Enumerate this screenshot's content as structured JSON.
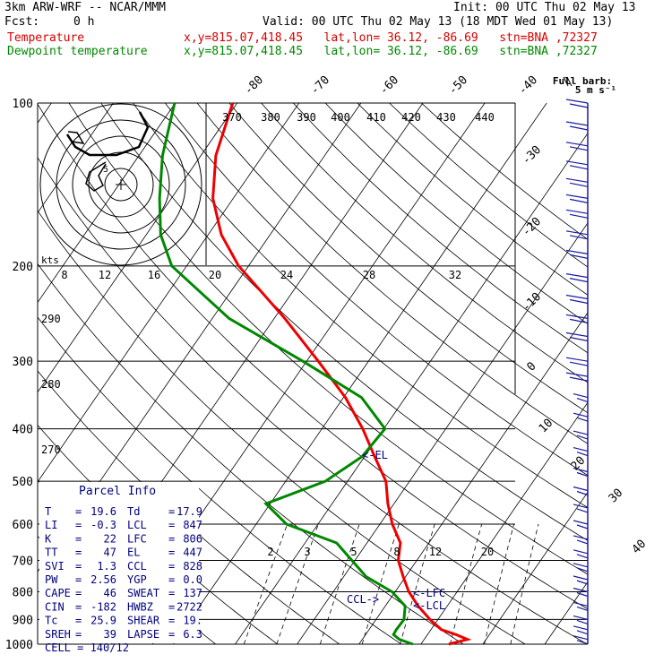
{
  "header": {
    "line1_left": "3km ARW-WRF -- NCAR/MMM",
    "line1_right": "Init: 00 UTC Thu 02 May 13",
    "fcst_label": "Fcst:",
    "fcst_value": "0 h",
    "valid": "Valid: 00 UTC Thu 02 May 13 (18 MDT Wed 01 May 13)",
    "temp_label": "Temperature",
    "dew_label": "Dewpoint temperature",
    "location": "x,y=815.07,418.45   lat,lon= 36.12, -86.69   stn=BNA ,72327"
  },
  "barb_legend": {
    "line1": "Full barb:",
    "line2": "5 m s⁻¹"
  },
  "hodograph": {
    "units_label": "kts",
    "ring_labels": [
      "5"
    ]
  },
  "parcel_info": {
    "title": "Parcel Info",
    "rows": [
      {
        "k1": "T",
        "v1": "19.6",
        "k2": "Td",
        "v2": "17.9"
      },
      {
        "k1": "LI",
        "v1": "-0.3",
        "k2": "LCL",
        "v2": "847"
      },
      {
        "k1": "K",
        "v1": "22",
        "k2": "LFC",
        "v2": "806"
      },
      {
        "k1": "TT",
        "v1": "47",
        "k2": "EL",
        "v2": "447"
      },
      {
        "k1": "SVI",
        "v1": "1.3",
        "k2": "CCL",
        "v2": "828"
      },
      {
        "k1": "PW",
        "v1": "2.56",
        "k2": "YGP",
        "v2": "0.0"
      },
      {
        "k1": "CAPE",
        "v1": "46",
        "k2": "SWEAT",
        "v2": "137"
      },
      {
        "k1": "CIN",
        "v1": "-182",
        "k2": "HWBZ",
        "v2": "2722"
      },
      {
        "k1": "Tc",
        "v1": "25.9",
        "k2": "SHEAR",
        "v2": "19."
      },
      {
        "k1": "SREH",
        "v1": "39",
        "k2": "LAPSE",
        "v2": "6.3"
      }
    ],
    "cell": "CELL = 140/12"
  },
  "chart_data": {
    "type": "line",
    "pressure_axis": {
      "label": "",
      "ticks": [
        100,
        200,
        300,
        400,
        500,
        600,
        700,
        800,
        900,
        1000
      ],
      "range": [
        100,
        1000
      ],
      "scale": "log"
    },
    "isotherm_labels": [
      -80,
      -70,
      -60,
      -50,
      -40,
      -30,
      -20,
      -10,
      0,
      10,
      20,
      30,
      40
    ],
    "theta_labels": [
      370,
      380,
      390,
      400,
      410,
      420,
      430,
      440
    ],
    "theta_side_labels": [
      270,
      280,
      290
    ],
    "mixing_ratio_labels_upper": [
      8,
      12,
      16,
      20,
      24,
      28,
      32
    ],
    "mixing_ratio_labels_lower": [
      2,
      3,
      5,
      8,
      12,
      20
    ],
    "levels": [
      {
        "label": "<-EL",
        "p": 447
      },
      {
        "label": "<-LFC",
        "p": 806
      },
      {
        "label": "<-LCL",
        "p": 847
      },
      {
        "label": "CCL->",
        "p": 828
      }
    ],
    "series": [
      {
        "name": "Temperature",
        "color": "#ee0000",
        "points": [
          [
            1000,
            24.5
          ],
          [
            980,
            27.0
          ],
          [
            960,
            24.6
          ],
          [
            940,
            21.7
          ],
          [
            900,
            18.7
          ],
          [
            850,
            15.3
          ],
          [
            800,
            12.2
          ],
          [
            750,
            9.6
          ],
          [
            700,
            7.0
          ],
          [
            650,
            5.4
          ],
          [
            600,
            2.0
          ],
          [
            550,
            -1.0
          ],
          [
            500,
            -3.8
          ],
          [
            450,
            -8.4
          ],
          [
            400,
            -13.4
          ],
          [
            350,
            -19.7
          ],
          [
            300,
            -28.1
          ],
          [
            250,
            -38.3
          ],
          [
            200,
            -51.6
          ],
          [
            175,
            -57.9
          ],
          [
            150,
            -63.3
          ],
          [
            125,
            -67.6
          ],
          [
            100,
            -70.7
          ]
        ]
      },
      {
        "name": "Dewpoint temperature",
        "color": "#008800",
        "points": [
          [
            1000,
            18.7
          ],
          [
            980,
            16.0
          ],
          [
            960,
            14.5
          ],
          [
            940,
            14.4
          ],
          [
            900,
            14.5
          ],
          [
            850,
            13.2
          ],
          [
            800,
            9.5
          ],
          [
            750,
            3.6
          ],
          [
            700,
            -0.5
          ],
          [
            650,
            -4.9
          ],
          [
            600,
            -15.1
          ],
          [
            550,
            -20.7
          ],
          [
            500,
            -13.6
          ],
          [
            450,
            -10.4
          ],
          [
            400,
            -9.8
          ],
          [
            350,
            -17.1
          ],
          [
            300,
            -30.6
          ],
          [
            250,
            -47.3
          ],
          [
            200,
            -62.4
          ],
          [
            175,
            -67.7
          ],
          [
            150,
            -71.9
          ],
          [
            125,
            -76.2
          ],
          [
            100,
            -80.1
          ]
        ]
      }
    ],
    "wind_barbs": [
      [
        100,
        -1
      ],
      [
        110,
        -1
      ],
      [
        120,
        -1
      ],
      [
        130,
        -1
      ],
      [
        140,
        -1
      ],
      [
        150,
        -1
      ],
      [
        160,
        -1
      ],
      [
        175,
        -1
      ],
      [
        190,
        -1
      ],
      [
        210,
        -1
      ],
      [
        230,
        -1
      ],
      [
        250,
        -1
      ],
      [
        270,
        -1
      ],
      [
        300,
        -1
      ],
      [
        320,
        -1
      ],
      [
        350,
        -1
      ],
      [
        380,
        -1
      ],
      [
        410,
        -1
      ],
      [
        440,
        -1
      ],
      [
        480,
        -1
      ],
      [
        520,
        -1
      ],
      [
        560,
        -1
      ],
      [
        600,
        -1
      ],
      [
        640,
        -1
      ],
      [
        680,
        -1
      ],
      [
        720,
        -1
      ],
      [
        760,
        -1
      ],
      [
        800,
        -1
      ],
      [
        850,
        -1
      ],
      [
        900,
        -1
      ],
      [
        940,
        -1
      ],
      [
        980,
        -1
      ]
    ]
  },
  "colors": {
    "temperature": "#ee0000",
    "dewpoint": "#008800",
    "annotation": "#000080",
    "grid": "#000000"
  }
}
